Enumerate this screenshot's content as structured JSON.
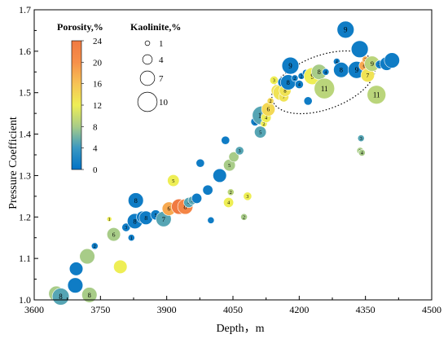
{
  "chart_data": {
    "type": "scatter",
    "xlabel": "Depth，m",
    "ylabel": "Pressure Coefficient",
    "xlim": [
      3600,
      4500
    ],
    "ylim": [
      1.0,
      1.7
    ],
    "xticks": [
      3600,
      3750,
      3900,
      4050,
      4200,
      4350,
      4500
    ],
    "xtick_labels": [
      "3600",
      "3750",
      "3900",
      "4050",
      "4200",
      "4350",
      "4500"
    ],
    "yticks": [
      1.0,
      1.1,
      1.2,
      1.3,
      1.4,
      1.5,
      1.6,
      1.7
    ],
    "ytick_labels": [
      "1.0",
      "1.1",
      "1.2",
      "1.3",
      "1.4",
      "1.5",
      "1.6",
      "1.7"
    ],
    "color_legend": {
      "title": "Porosity,%",
      "min": 0,
      "max": 24,
      "tick_labels": [
        "24",
        "20",
        "16",
        "12",
        "8",
        "4",
        "0"
      ],
      "stops": [
        {
          "at": 0,
          "color": "#0072c6"
        },
        {
          "at": 4,
          "color": "#3a98c2"
        },
        {
          "at": 8,
          "color": "#a8cc88"
        },
        {
          "at": 12,
          "color": "#eeee55"
        },
        {
          "at": 16,
          "color": "#f7c255"
        },
        {
          "at": 20,
          "color": "#f7904a"
        },
        {
          "at": 24,
          "color": "#f07a42"
        }
      ]
    },
    "size_legend": {
      "title": "Kaolinite,%",
      "values": [
        1,
        4,
        7,
        10
      ],
      "labels": [
        "1",
        "4",
        "7",
        "10"
      ]
    },
    "points": [
      {
        "x": 3650,
        "y": 1.015,
        "porosity": 8,
        "kaolinite": 7,
        "label": "7"
      },
      {
        "x": 3660,
        "y": 1.008,
        "porosity": 5,
        "kaolinite": 8,
        "label": "8"
      },
      {
        "x": 3693,
        "y": 1.035,
        "porosity": 1,
        "kaolinite": 7,
        "label": ""
      },
      {
        "x": 3695,
        "y": 1.075,
        "porosity": 1,
        "kaolinite": 6,
        "label": ""
      },
      {
        "x": 3720,
        "y": 1.105,
        "porosity": 8,
        "kaolinite": 7,
        "label": ""
      },
      {
        "x": 3725,
        "y": 1.012,
        "porosity": 8,
        "kaolinite": 7,
        "label": "8"
      },
      {
        "x": 3737,
        "y": 1.13,
        "porosity": 1,
        "kaolinite": 2,
        "label": "2"
      },
      {
        "x": 3770,
        "y": 1.195,
        "porosity": 12,
        "kaolinite": 1,
        "label": "1"
      },
      {
        "x": 3780,
        "y": 1.158,
        "porosity": 8,
        "kaolinite": 6,
        "label": "6"
      },
      {
        "x": 3795,
        "y": 1.08,
        "porosity": 12,
        "kaolinite": 6,
        "label": ""
      },
      {
        "x": 3808,
        "y": 1.175,
        "porosity": 1,
        "kaolinite": 3,
        "label": "3"
      },
      {
        "x": 3820,
        "y": 1.15,
        "porosity": 1,
        "kaolinite": 2,
        "label": "1"
      },
      {
        "x": 3828,
        "y": 1.19,
        "porosity": 1,
        "kaolinite": 7,
        "label": "8"
      },
      {
        "x": 3830,
        "y": 1.24,
        "porosity": 1,
        "kaolinite": 7,
        "label": "8"
      },
      {
        "x": 3845,
        "y": 1.2,
        "porosity": 1,
        "kaolinite": 5,
        "label": "7"
      },
      {
        "x": 3853,
        "y": 1.198,
        "porosity": 1,
        "kaolinite": 6,
        "label": "8"
      },
      {
        "x": 3875,
        "y": 1.205,
        "porosity": 1,
        "kaolinite": 4,
        "label": "5"
      },
      {
        "x": 3893,
        "y": 1.195,
        "porosity": 5,
        "kaolinite": 7,
        "label": "7"
      },
      {
        "x": 3905,
        "y": 1.22,
        "porosity": 18,
        "kaolinite": 6,
        "label": "6"
      },
      {
        "x": 3915,
        "y": 1.288,
        "porosity": 12,
        "kaolinite": 5,
        "label": "5"
      },
      {
        "x": 3928,
        "y": 1.225,
        "porosity": 24,
        "kaolinite": 7,
        "label": "7"
      },
      {
        "x": 3942,
        "y": 1.225,
        "porosity": 22,
        "kaolinite": 7,
        "label": "8"
      },
      {
        "x": 3950,
        "y": 1.235,
        "porosity": 5,
        "kaolinite": 4,
        "label": "4"
      },
      {
        "x": 3958,
        "y": 1.24,
        "porosity": 5,
        "kaolinite": 3,
        "label": "3"
      },
      {
        "x": 3968,
        "y": 1.245,
        "porosity": 1,
        "kaolinite": 4,
        "label": ""
      },
      {
        "x": 3976,
        "y": 1.33,
        "porosity": 1,
        "kaolinite": 3,
        "label": ""
      },
      {
        "x": 3993,
        "y": 1.265,
        "porosity": 1,
        "kaolinite": 4,
        "label": ""
      },
      {
        "x": 4000,
        "y": 1.192,
        "porosity": 1,
        "kaolinite": 2,
        "label": ""
      },
      {
        "x": 4020,
        "y": 1.3,
        "porosity": 1,
        "kaolinite": 6,
        "label": ""
      },
      {
        "x": 4033,
        "y": 1.385,
        "porosity": 1,
        "kaolinite": 3,
        "label": ""
      },
      {
        "x": 4040,
        "y": 1.235,
        "porosity": 12,
        "kaolinite": 4,
        "label": "4"
      },
      {
        "x": 4042,
        "y": 1.325,
        "porosity": 8,
        "kaolinite": 5,
        "label": "5"
      },
      {
        "x": 4045,
        "y": 1.26,
        "porosity": 9,
        "kaolinite": 2,
        "label": "2"
      },
      {
        "x": 4052,
        "y": 1.345,
        "porosity": 8,
        "kaolinite": 4,
        "label": ""
      },
      {
        "x": 4065,
        "y": 1.36,
        "porosity": 5,
        "kaolinite": 3,
        "label": "3"
      },
      {
        "x": 4083,
        "y": 1.25,
        "porosity": 12,
        "kaolinite": 3,
        "label": "3"
      },
      {
        "x": 4075,
        "y": 1.2,
        "porosity": 8,
        "kaolinite": 2,
        "label": "2"
      },
      {
        "x": 4100,
        "y": 1.43,
        "porosity": 1,
        "kaolinite": 3,
        "label": "3"
      },
      {
        "x": 4112,
        "y": 1.405,
        "porosity": 5,
        "kaolinite": 5,
        "label": "5"
      },
      {
        "x": 4115,
        "y": 1.445,
        "porosity": 5,
        "kaolinite": 9,
        "label": "10"
      },
      {
        "x": 4120,
        "y": 1.425,
        "porosity": 12,
        "kaolinite": 2,
        "label": "2"
      },
      {
        "x": 4125,
        "y": 1.44,
        "porosity": 12,
        "kaolinite": 4,
        "label": "4"
      },
      {
        "x": 4130,
        "y": 1.46,
        "porosity": 14,
        "kaolinite": 6,
        "label": "6"
      },
      {
        "x": 4135,
        "y": 1.48,
        "porosity": 14,
        "kaolinite": 2,
        "label": "2"
      },
      {
        "x": 4143,
        "y": 1.53,
        "porosity": 12,
        "kaolinite": 3,
        "label": "3"
      },
      {
        "x": 4150,
        "y": 1.505,
        "porosity": 13,
        "kaolinite": 5,
        "label": "5"
      },
      {
        "x": 4158,
        "y": 1.5,
        "porosity": 13,
        "kaolinite": 7,
        "label": "7"
      },
      {
        "x": 4163,
        "y": 1.525,
        "porosity": 1,
        "kaolinite": 4,
        "label": "4"
      },
      {
        "x": 4165,
        "y": 1.49,
        "porosity": 13,
        "kaolinite": 4,
        "label": "7"
      },
      {
        "x": 4168,
        "y": 1.505,
        "porosity": 13,
        "kaolinite": 5,
        "label": "8"
      },
      {
        "x": 4175,
        "y": 1.525,
        "porosity": 1,
        "kaolinite": 7,
        "label": "8"
      },
      {
        "x": 4180,
        "y": 1.565,
        "porosity": 1,
        "kaolinite": 8,
        "label": "9"
      },
      {
        "x": 4190,
        "y": 1.535,
        "porosity": 1,
        "kaolinite": 2,
        "label": "2"
      },
      {
        "x": 4200,
        "y": 1.52,
        "porosity": 1,
        "kaolinite": 3,
        "label": "4"
      },
      {
        "x": 4205,
        "y": 1.54,
        "porosity": 1,
        "kaolinite": 2,
        "label": "2"
      },
      {
        "x": 4215,
        "y": 1.548,
        "porosity": 1,
        "kaolinite": 2,
        "label": "9"
      },
      {
        "x": 4220,
        "y": 1.48,
        "porosity": 1,
        "kaolinite": 3,
        "label": ""
      },
      {
        "x": 4230,
        "y": 1.54,
        "porosity": 12,
        "kaolinite": 8,
        "label": "9"
      },
      {
        "x": 4245,
        "y": 1.55,
        "porosity": 8,
        "kaolinite": 7,
        "label": "8"
      },
      {
        "x": 4257,
        "y": 1.51,
        "porosity": 9,
        "kaolinite": 10,
        "label": "11"
      },
      {
        "x": 4260,
        "y": 1.55,
        "porosity": 1,
        "kaolinite": 2,
        "label": "4"
      },
      {
        "x": 4285,
        "y": 1.575,
        "porosity": 1,
        "kaolinite": 2,
        "label": "4"
      },
      {
        "x": 4295,
        "y": 1.555,
        "porosity": 1,
        "kaolinite": 7,
        "label": "8"
      },
      {
        "x": 4305,
        "y": 1.652,
        "porosity": 1,
        "kaolinite": 8,
        "label": "9"
      },
      {
        "x": 4330,
        "y": 1.555,
        "porosity": 1,
        "kaolinite": 8,
        "label": "9"
      },
      {
        "x": 4337,
        "y": 1.605,
        "porosity": 1,
        "kaolinite": 8,
        "label": ""
      },
      {
        "x": 4340,
        "y": 1.39,
        "porosity": 5,
        "kaolinite": 2,
        "label": "3"
      },
      {
        "x": 4338,
        "y": 1.36,
        "porosity": 8,
        "kaolinite": 2,
        "label": "3"
      },
      {
        "x": 4342,
        "y": 1.355,
        "porosity": 8,
        "kaolinite": 2,
        "label": "4"
      },
      {
        "x": 4347,
        "y": 1.565,
        "porosity": 18,
        "kaolinite": 4,
        "label": "6"
      },
      {
        "x": 4350,
        "y": 1.58,
        "porosity": 18,
        "kaolinite": 2,
        "label": "2"
      },
      {
        "x": 4355,
        "y": 1.542,
        "porosity": 13,
        "kaolinite": 6,
        "label": "7"
      },
      {
        "x": 4365,
        "y": 1.57,
        "porosity": 9,
        "kaolinite": 7,
        "label": "9"
      },
      {
        "x": 4375,
        "y": 1.495,
        "porosity": 9,
        "kaolinite": 9,
        "label": "11"
      },
      {
        "x": 4382,
        "y": 1.568,
        "porosity": 1,
        "kaolinite": 3,
        "label": "3"
      },
      {
        "x": 4398,
        "y": 1.57,
        "porosity": 1,
        "kaolinite": 6,
        "label": "8"
      },
      {
        "x": 4410,
        "y": 1.578,
        "porosity": 1,
        "kaolinite": 7,
        "label": ""
      }
    ],
    "annotation": {
      "type": "ellipse",
      "cx": 4255,
      "cy": 1.525,
      "rx": 245,
      "ry": 0.13,
      "angle_deg": -20,
      "style": "dotted"
    }
  }
}
